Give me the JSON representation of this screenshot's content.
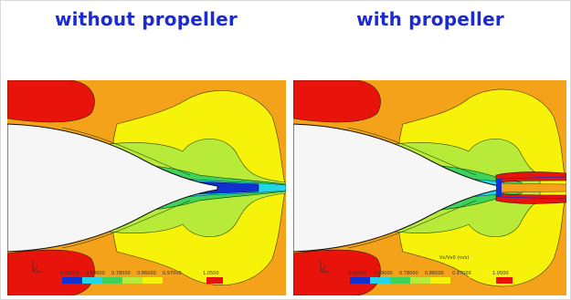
{
  "panels": [
    {
      "title": "without propeller",
      "has_propeller": false,
      "scale_labels": [
        "0.60000",
        "0.69000",
        "0.78000",
        "0.86000",
        "0.97000",
        "1.0500"
      ]
    },
    {
      "title": "with propeller",
      "has_propeller": true,
      "scale_title": "Vx/Vx0 (m/s)",
      "scale_labels": [
        "0.60000",
        "0.69000",
        "0.78000",
        "0.86000",
        "0.97000",
        "1.0500"
      ]
    }
  ],
  "colors": {
    "title": "#1a2bd6",
    "background_orange": "#f4a21a",
    "low_red": "#e8140c",
    "yellow": "#f7f20a",
    "light_green": "#b8ea3a",
    "green": "#3fd25a",
    "cyan": "#22d6e8",
    "blue": "#1030d0",
    "hull": "#f6f6f6"
  }
}
